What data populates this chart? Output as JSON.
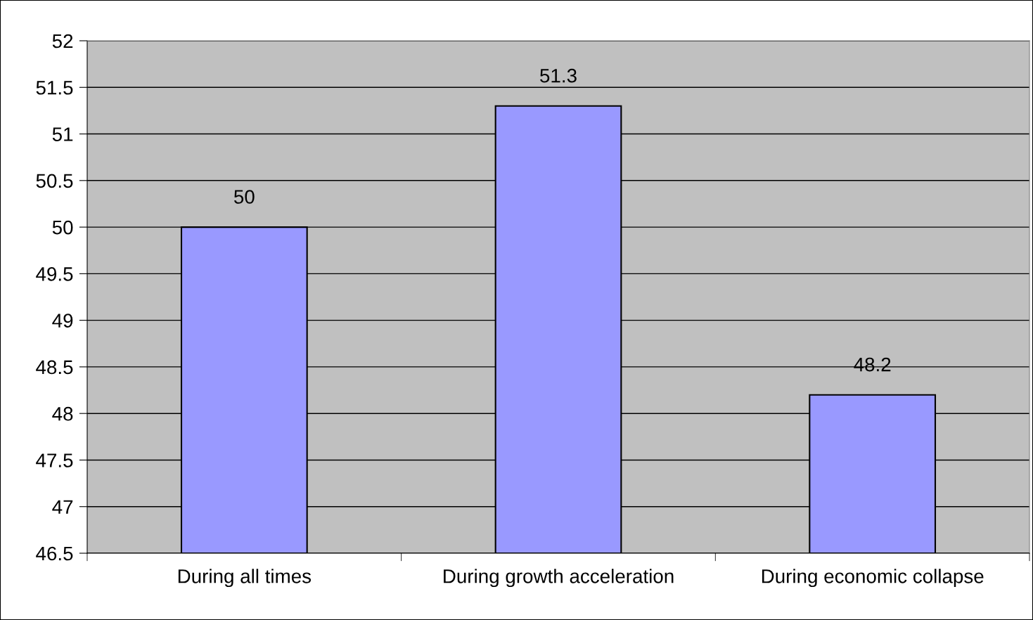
{
  "chart_data": {
    "type": "bar",
    "categories": [
      "During all times",
      "During growth acceleration",
      "During economic collapse"
    ],
    "values": [
      50,
      51.3,
      48.2
    ],
    "color": "#9999ff",
    "ylim": [
      46.5,
      52
    ],
    "yticks": [
      46.5,
      47,
      47.5,
      48,
      48.5,
      49,
      49.5,
      50,
      50.5,
      51,
      51.5,
      52
    ],
    "grid": "y",
    "data_labels": true,
    "legend": false
  }
}
